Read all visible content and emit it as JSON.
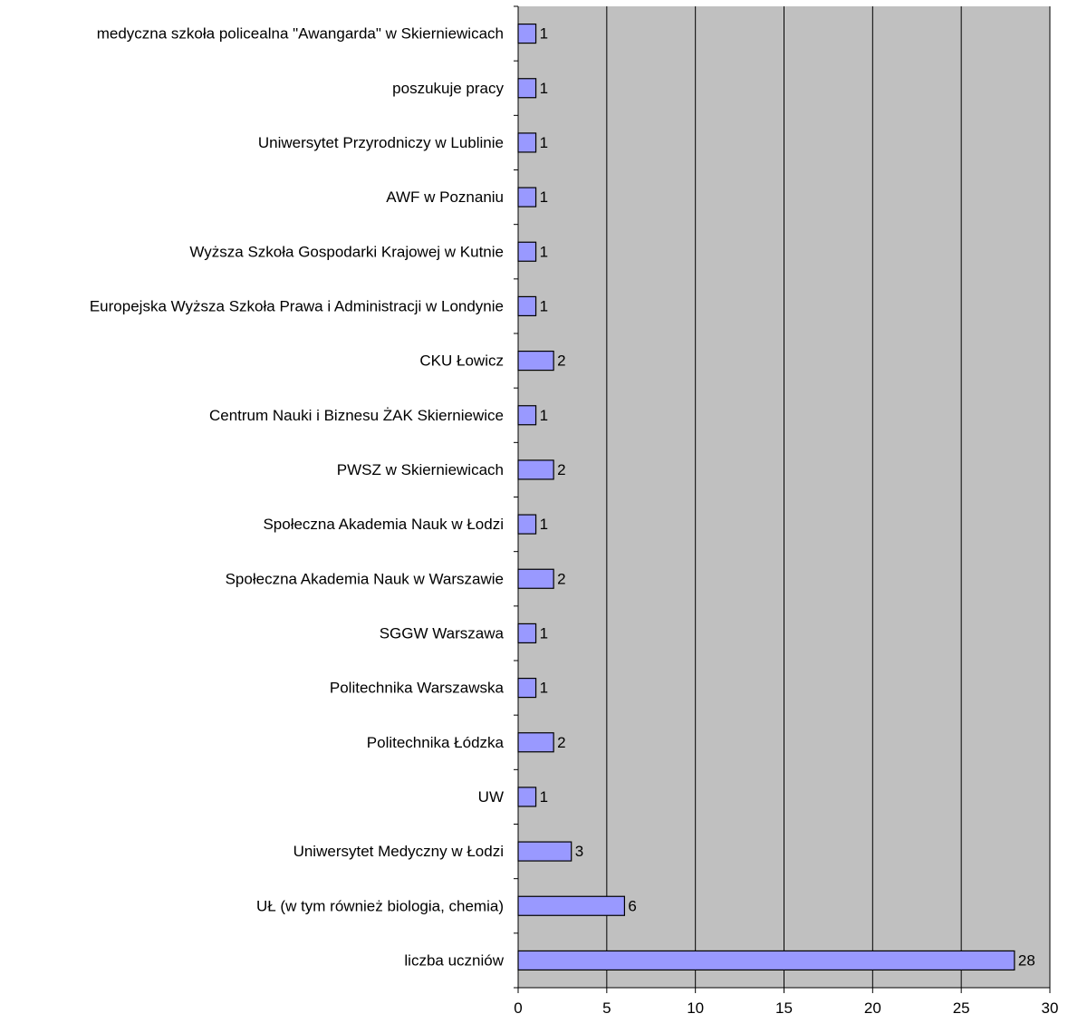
{
  "chart_data": {
    "type": "bar",
    "orientation": "horizontal",
    "categories": [
      "medyczna szkoła policealna \"Awangarda\" w Skierniewicach",
      "poszukuje pracy",
      "Uniwersytet Przyrodniczy w Lublinie",
      "AWF w Poznaniu",
      "Wyższa Szkoła Gospodarki Krajowej w Kutnie",
      "Europejska Wyższa Szkoła Prawa i Administracji w Londynie",
      "CKU Łowicz",
      "Centrum Nauki i Biznesu ŻAK Skierniewice",
      "PWSZ w Skierniewicach",
      "Społeczna Akademia Nauk w Łodzi",
      "Społeczna Akademia Nauk w Warszawie",
      "SGGW Warszawa",
      "Politechnika Warszawska",
      "Politechnika Łódzka",
      "UW",
      "Uniwersytet Medyczny w Łodzi",
      "UŁ (w tym również biologia, chemia)",
      "liczba uczniów"
    ],
    "values": [
      1,
      1,
      1,
      1,
      1,
      1,
      2,
      1,
      2,
      1,
      2,
      1,
      1,
      2,
      1,
      3,
      6,
      28
    ],
    "data_labels": [
      "1",
      "1",
      "1",
      "1",
      "1",
      "1",
      "2",
      "1",
      "2",
      "1",
      "2",
      "1",
      "1",
      "2",
      "1",
      "3",
      "6",
      "28"
    ],
    "xlim": [
      0,
      30
    ],
    "x_ticks": [
      0,
      5,
      10,
      15,
      20,
      25,
      30
    ],
    "x_tick_labels": [
      "0",
      "5",
      "10",
      "15",
      "20",
      "25",
      "30"
    ],
    "grid": true,
    "legend": "none",
    "title": "",
    "xlabel": "",
    "ylabel": "",
    "colors": {
      "bar_fill": "#9999ff",
      "bar_stroke": "#000000",
      "plot_background": "#c0c0c0",
      "gridline": "#000000"
    }
  }
}
